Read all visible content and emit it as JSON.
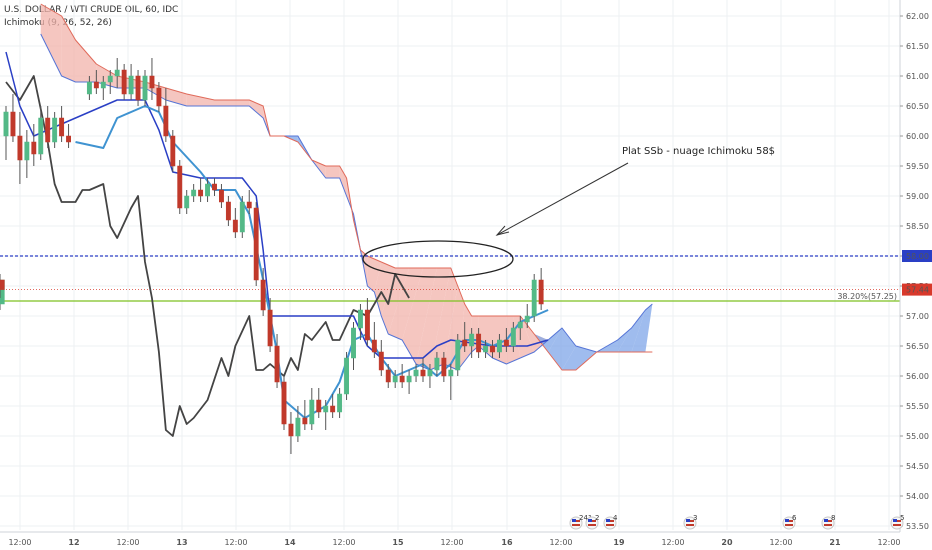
{
  "header": {
    "symbol_title": "U.S. DOLLAR / WTI CRUDE OIL, 60, IDC",
    "indicator": "Ichimoku (9, 26, 52, 26)"
  },
  "colors": {
    "bull_candle": "#53b987",
    "bear_candle": "#c0392b",
    "tenkan": "#3f93d1",
    "kijun": "#2a3fc5",
    "chikou": "#444444",
    "cloud_bearish": "#f2b3ab",
    "cloud_bullish": "#7fa6e8",
    "senkou_a": "#5574d6",
    "senkou_b": "#e06a5a",
    "level_58": "#2a3fc5",
    "fib_line": "#7dc121",
    "last_price": "#d8392b"
  },
  "chart_data": {
    "type": "candlestick",
    "title": "U.S. DOLLAR / WTI CRUDE OIL, 60, IDC",
    "ylim": [
      53.5,
      62.2
    ],
    "y_ticks": [
      "62.00",
      "61.50",
      "61.00",
      "60.50",
      "60.00",
      "59.50",
      "59.00",
      "58.50",
      "58.00",
      "57.50",
      "57.00",
      "56.50",
      "56.00",
      "55.50",
      "55.00",
      "54.50",
      "54.00",
      "53.50"
    ],
    "x_ticks": [
      "12:00",
      "12",
      "12:00",
      "13",
      "12:00",
      "14",
      "12:00",
      "15",
      "12:00",
      "16",
      "12:00",
      "19",
      "12:00",
      "20",
      "12:00",
      "21",
      "12:00"
    ],
    "annotation": "Plat SSb - nuage Ichimoku 58$",
    "horizontal_level": {
      "value": 58.0,
      "label": "58.00"
    },
    "fib_level": {
      "value": 57.25,
      "label": "38.20%(57.25)"
    },
    "last_price": {
      "value": 57.44,
      "label": "57.44"
    },
    "event_badges": [
      "241",
      "2",
      "4",
      "3",
      "6",
      "8",
      "5"
    ],
    "candles": [
      {
        "o": 60.0,
        "h": 60.5,
        "l": 59.6,
        "c": 60.4
      },
      {
        "o": 60.4,
        "h": 60.7,
        "l": 59.9,
        "c": 60.0
      },
      {
        "o": 60.0,
        "h": 60.4,
        "l": 59.2,
        "c": 59.6
      },
      {
        "o": 59.6,
        "h": 60.1,
        "l": 59.3,
        "c": 59.9
      },
      {
        "o": 59.9,
        "h": 60.2,
        "l": 59.5,
        "c": 59.7
      },
      {
        "o": 59.7,
        "h": 60.5,
        "l": 59.6,
        "c": 60.3
      },
      {
        "o": 60.3,
        "h": 60.5,
        "l": 59.8,
        "c": 59.9
      },
      {
        "o": 59.9,
        "h": 60.4,
        "l": 59.8,
        "c": 60.3
      },
      {
        "o": 60.3,
        "h": 60.5,
        "l": 59.9,
        "c": 60.0
      },
      {
        "o": 60.0,
        "h": 60.2,
        "l": 59.8,
        "c": 59.9
      },
      {
        "o": 60.7,
        "h": 61.0,
        "l": 60.6,
        "c": 60.9
      },
      {
        "o": 60.9,
        "h": 61.1,
        "l": 60.7,
        "c": 60.8
      },
      {
        "o": 60.8,
        "h": 61.0,
        "l": 60.6,
        "c": 60.9
      },
      {
        "o": 60.9,
        "h": 61.1,
        "l": 60.7,
        "c": 61.0
      },
      {
        "o": 61.0,
        "h": 61.3,
        "l": 60.8,
        "c": 61.1
      },
      {
        "o": 61.1,
        "h": 61.2,
        "l": 60.6,
        "c": 60.7
      },
      {
        "o": 60.7,
        "h": 61.2,
        "l": 60.6,
        "c": 61.0
      },
      {
        "o": 61.0,
        "h": 61.1,
        "l": 60.5,
        "c": 60.6
      },
      {
        "o": 60.6,
        "h": 61.1,
        "l": 60.5,
        "c": 61.0
      },
      {
        "o": 61.0,
        "h": 61.3,
        "l": 60.6,
        "c": 60.8
      },
      {
        "o": 60.8,
        "h": 60.9,
        "l": 60.4,
        "c": 60.5
      },
      {
        "o": 60.5,
        "h": 60.8,
        "l": 59.9,
        "c": 60.0
      },
      {
        "o": 60.0,
        "h": 60.1,
        "l": 59.4,
        "c": 59.5
      },
      {
        "o": 59.5,
        "h": 59.6,
        "l": 58.7,
        "c": 58.8
      },
      {
        "o": 58.8,
        "h": 59.1,
        "l": 58.7,
        "c": 59.0
      },
      {
        "o": 59.0,
        "h": 59.2,
        "l": 58.9,
        "c": 59.1
      },
      {
        "o": 59.1,
        "h": 59.3,
        "l": 58.9,
        "c": 59.0
      },
      {
        "o": 59.0,
        "h": 59.3,
        "l": 58.9,
        "c": 59.2
      },
      {
        "o": 59.2,
        "h": 59.3,
        "l": 59.0,
        "c": 59.1
      },
      {
        "o": 59.1,
        "h": 59.2,
        "l": 58.8,
        "c": 58.9
      },
      {
        "o": 58.9,
        "h": 59.0,
        "l": 58.5,
        "c": 58.6
      },
      {
        "o": 58.6,
        "h": 58.8,
        "l": 58.3,
        "c": 58.4
      },
      {
        "o": 58.4,
        "h": 59.0,
        "l": 58.3,
        "c": 58.9
      },
      {
        "o": 58.9,
        "h": 59.1,
        "l": 58.7,
        "c": 58.8
      },
      {
        "o": 58.8,
        "h": 58.9,
        "l": 57.5,
        "c": 57.6
      },
      {
        "o": 57.6,
        "h": 57.8,
        "l": 57.0,
        "c": 57.1
      },
      {
        "o": 57.1,
        "h": 57.3,
        "l": 56.4,
        "c": 56.5
      },
      {
        "o": 56.5,
        "h": 56.7,
        "l": 55.8,
        "c": 55.9
      },
      {
        "o": 55.9,
        "h": 56.0,
        "l": 55.1,
        "c": 55.2
      },
      {
        "o": 55.2,
        "h": 55.4,
        "l": 54.7,
        "c": 55.0
      },
      {
        "o": 55.0,
        "h": 55.5,
        "l": 54.9,
        "c": 55.3
      },
      {
        "o": 55.3,
        "h": 55.6,
        "l": 55.1,
        "c": 55.2
      },
      {
        "o": 55.2,
        "h": 55.8,
        "l": 55.1,
        "c": 55.6
      },
      {
        "o": 55.6,
        "h": 55.8,
        "l": 55.3,
        "c": 55.4
      },
      {
        "o": 55.4,
        "h": 55.6,
        "l": 55.1,
        "c": 55.5
      },
      {
        "o": 55.5,
        "h": 55.7,
        "l": 55.3,
        "c": 55.4
      },
      {
        "o": 55.4,
        "h": 55.8,
        "l": 55.3,
        "c": 55.7
      },
      {
        "o": 55.7,
        "h": 56.4,
        "l": 55.6,
        "c": 56.3
      },
      {
        "o": 56.3,
        "h": 56.9,
        "l": 56.1,
        "c": 56.8
      },
      {
        "o": 56.8,
        "h": 57.2,
        "l": 56.6,
        "c": 57.1
      },
      {
        "o": 57.1,
        "h": 57.3,
        "l": 56.5,
        "c": 56.6
      },
      {
        "o": 56.6,
        "h": 56.9,
        "l": 56.3,
        "c": 56.4
      },
      {
        "o": 56.4,
        "h": 56.6,
        "l": 56.0,
        "c": 56.1
      },
      {
        "o": 56.1,
        "h": 56.2,
        "l": 55.8,
        "c": 55.9
      },
      {
        "o": 55.9,
        "h": 56.1,
        "l": 55.8,
        "c": 56.0
      },
      {
        "o": 56.0,
        "h": 56.2,
        "l": 55.8,
        "c": 55.9
      },
      {
        "o": 55.9,
        "h": 56.1,
        "l": 55.7,
        "c": 56.0
      },
      {
        "o": 56.0,
        "h": 56.2,
        "l": 55.9,
        "c": 56.1
      },
      {
        "o": 56.1,
        "h": 56.3,
        "l": 55.9,
        "c": 56.0
      },
      {
        "o": 56.0,
        "h": 56.2,
        "l": 55.8,
        "c": 56.1
      },
      {
        "o": 56.1,
        "h": 56.4,
        "l": 56.0,
        "c": 56.3
      },
      {
        "o": 56.3,
        "h": 56.4,
        "l": 55.9,
        "c": 56.0
      },
      {
        "o": 56.0,
        "h": 56.2,
        "l": 55.6,
        "c": 56.1
      },
      {
        "o": 56.1,
        "h": 56.7,
        "l": 56.0,
        "c": 56.6
      },
      {
        "o": 56.6,
        "h": 56.9,
        "l": 56.4,
        "c": 56.5
      },
      {
        "o": 56.5,
        "h": 56.8,
        "l": 56.3,
        "c": 56.7
      },
      {
        "o": 56.7,
        "h": 56.8,
        "l": 56.3,
        "c": 56.4
      },
      {
        "o": 56.4,
        "h": 56.6,
        "l": 56.3,
        "c": 56.5
      },
      {
        "o": 56.5,
        "h": 56.6,
        "l": 56.3,
        "c": 56.4
      },
      {
        "o": 56.4,
        "h": 56.7,
        "l": 56.3,
        "c": 56.6
      },
      {
        "o": 56.6,
        "h": 56.8,
        "l": 56.4,
        "c": 56.5
      },
      {
        "o": 56.5,
        "h": 56.9,
        "l": 56.4,
        "c": 56.8
      },
      {
        "o": 56.8,
        "h": 57.0,
        "l": 56.6,
        "c": 56.9
      },
      {
        "o": 56.9,
        "h": 57.2,
        "l": 56.8,
        "c": 57.0
      },
      {
        "o": 57.0,
        "h": 57.7,
        "l": 56.9,
        "c": 57.6
      },
      {
        "o": 57.6,
        "h": 57.8,
        "l": 57.1,
        "c": 57.2
      },
      {
        "o": 57.2,
        "h": 57.7,
        "l": 57.1,
        "c": 57.6
      },
      {
        "o": 57.6,
        "h": 57.7,
        "l": 57.3,
        "c": 57.44
      }
    ],
    "candle_x_index": [
      0,
      1,
      2,
      3,
      4,
      5,
      6,
      7,
      8,
      9,
      12,
      13,
      14,
      15,
      16,
      17,
      18,
      19,
      20,
      21,
      22,
      23,
      24,
      25,
      26,
      27,
      28,
      29,
      30,
      31,
      32,
      33,
      34,
      35,
      36,
      37,
      38,
      39,
      40,
      41,
      42,
      43,
      44,
      45,
      46,
      47,
      48,
      49,
      50,
      51,
      52,
      53,
      54,
      55,
      56,
      57,
      58,
      59,
      60,
      61,
      62,
      63,
      64,
      65,
      66,
      67,
      68,
      69,
      70,
      71,
      72,
      73,
      74,
      75,
      76,
      77
    ],
    "tenkan_sen": [
      [
        10,
        59.9
      ],
      [
        14,
        59.8
      ],
      [
        16,
        60.3
      ],
      [
        18,
        60.4
      ],
      [
        20,
        60.5
      ],
      [
        22,
        60.4
      ],
      [
        24,
        59.9
      ],
      [
        28,
        59.4
      ],
      [
        30,
        59.1
      ],
      [
        33,
        59.1
      ],
      [
        35,
        58.7
      ],
      [
        37,
        57.6
      ],
      [
        39,
        56.4
      ],
      [
        40,
        55.6
      ],
      [
        43,
        55.3
      ],
      [
        46,
        55.5
      ],
      [
        48,
        55.9
      ],
      [
        50,
        56.6
      ],
      [
        52,
        56.7
      ],
      [
        54,
        56.3
      ],
      [
        56,
        56.0
      ],
      [
        58,
        56.1
      ],
      [
        60,
        56.2
      ],
      [
        62,
        56.0
      ],
      [
        64,
        56.2
      ],
      [
        66,
        56.6
      ],
      [
        68,
        56.6
      ],
      [
        70,
        56.5
      ],
      [
        72,
        56.6
      ],
      [
        74,
        56.9
      ],
      [
        76,
        57.0
      ],
      [
        78,
        57.1
      ]
    ],
    "kijun_sen": [
      [
        0,
        61.4
      ],
      [
        2,
        60.5
      ],
      [
        4,
        60.0
      ],
      [
        8,
        60.2
      ],
      [
        10,
        60.3
      ],
      [
        16,
        60.6
      ],
      [
        20,
        60.6
      ],
      [
        22,
        60.1
      ],
      [
        24,
        59.4
      ],
      [
        28,
        59.3
      ],
      [
        34,
        59.3
      ],
      [
        36,
        59.0
      ],
      [
        37,
        58.1
      ],
      [
        38,
        57.0
      ],
      [
        40,
        57.0
      ],
      [
        45,
        57.0
      ],
      [
        50,
        57.0
      ],
      [
        52,
        56.5
      ],
      [
        54,
        56.3
      ],
      [
        58,
        56.3
      ],
      [
        60,
        56.3
      ],
      [
        62,
        56.5
      ],
      [
        64,
        56.6
      ],
      [
        70,
        56.5
      ],
      [
        72,
        56.5
      ],
      [
        75,
        56.5
      ],
      [
        78,
        56.6
      ]
    ],
    "chikou_span": [
      [
        0,
        60.9
      ],
      [
        2,
        60.6
      ],
      [
        4,
        61.0
      ],
      [
        6,
        59.9
      ],
      [
        7,
        59.2
      ],
      [
        8,
        58.9
      ],
      [
        10,
        58.9
      ],
      [
        11,
        59.1
      ],
      [
        12,
        59.1
      ],
      [
        14,
        59.2
      ],
      [
        15,
        58.5
      ],
      [
        16,
        58.3
      ],
      [
        18,
        58.8
      ],
      [
        19,
        59.0
      ],
      [
        20,
        57.9
      ],
      [
        21,
        57.3
      ],
      [
        22,
        56.4
      ],
      [
        23,
        55.1
      ],
      [
        24,
        55.0
      ],
      [
        25,
        55.5
      ],
      [
        26,
        55.2
      ],
      [
        27,
        55.3
      ],
      [
        29,
        55.6
      ],
      [
        31,
        56.3
      ],
      [
        32,
        56.0
      ],
      [
        33,
        56.5
      ],
      [
        35,
        57.0
      ],
      [
        36,
        56.1
      ],
      [
        37,
        56.1
      ],
      [
        38,
        56.2
      ],
      [
        40,
        56.0
      ],
      [
        41,
        56.3
      ],
      [
        42,
        56.1
      ],
      [
        43,
        56.7
      ],
      [
        44,
        56.6
      ],
      [
        46,
        56.9
      ],
      [
        47,
        56.6
      ],
      [
        48,
        56.6
      ],
      [
        50,
        57.1
      ],
      [
        52,
        57.0
      ],
      [
        54,
        57.4
      ],
      [
        55,
        57.2
      ],
      [
        56,
        57.7
      ],
      [
        57,
        57.5
      ],
      [
        58,
        57.3
      ]
    ],
    "senkou_span_a": [
      [
        5,
        61.7
      ],
      [
        8,
        61.0
      ],
      [
        10,
        60.9
      ],
      [
        13,
        60.9
      ],
      [
        16,
        60.8
      ],
      [
        20,
        60.8
      ],
      [
        23,
        60.6
      ],
      [
        26,
        60.5
      ],
      [
        30,
        60.5
      ],
      [
        35,
        60.5
      ],
      [
        37,
        60.3
      ],
      [
        38,
        60.0
      ],
      [
        40,
        60.0
      ],
      [
        42,
        60.0
      ],
      [
        44,
        59.6
      ],
      [
        46,
        59.3
      ],
      [
        48,
        59.3
      ],
      [
        49,
        59.0
      ],
      [
        50,
        58.7
      ],
      [
        51,
        58.1
      ],
      [
        52,
        57.5
      ],
      [
        53,
        57.4
      ],
      [
        54,
        57.0
      ],
      [
        55,
        56.7
      ],
      [
        57,
        56.6
      ],
      [
        59,
        56.2
      ],
      [
        61,
        56.1
      ],
      [
        63,
        56.2
      ],
      [
        65,
        56.1
      ],
      [
        67,
        56.4
      ],
      [
        68,
        56.5
      ],
      [
        70,
        56.3
      ],
      [
        72,
        56.2
      ],
      [
        74,
        56.3
      ],
      [
        76,
        56.4
      ],
      [
        78,
        56.6
      ],
      [
        80,
        56.8
      ],
      [
        82,
        56.5
      ],
      [
        85,
        56.4
      ],
      [
        88,
        56.6
      ],
      [
        90,
        56.8
      ],
      [
        92,
        57.1
      ],
      [
        93,
        57.2
      ]
    ],
    "senkou_span_b": [
      [
        5,
        62.2
      ],
      [
        8,
        62.0
      ],
      [
        10,
        61.6
      ],
      [
        13,
        61.2
      ],
      [
        16,
        61.0
      ],
      [
        20,
        60.9
      ],
      [
        23,
        60.8
      ],
      [
        26,
        60.7
      ],
      [
        30,
        60.6
      ],
      [
        35,
        60.6
      ],
      [
        37,
        60.5
      ],
      [
        38,
        60.0
      ],
      [
        40,
        60.0
      ],
      [
        42,
        59.9
      ],
      [
        44,
        59.6
      ],
      [
        46,
        59.5
      ],
      [
        48,
        59.5
      ],
      [
        49,
        59.3
      ],
      [
        50,
        58.6
      ],
      [
        51,
        58.1
      ],
      [
        52,
        58.0
      ],
      [
        54,
        57.9
      ],
      [
        56,
        57.8
      ],
      [
        58,
        57.8
      ],
      [
        60,
        57.8
      ],
      [
        62,
        57.8
      ],
      [
        64,
        57.8
      ],
      [
        65,
        57.5
      ],
      [
        66,
        57.2
      ],
      [
        67,
        57.0
      ],
      [
        68,
        57.0
      ],
      [
        70,
        57.0
      ],
      [
        72,
        57.0
      ],
      [
        73,
        57.0
      ],
      [
        74,
        57.0
      ],
      [
        76,
        56.7
      ],
      [
        78,
        56.4
      ],
      [
        80,
        56.1
      ],
      [
        82,
        56.1
      ],
      [
        85,
        56.4
      ],
      [
        88,
        56.4
      ],
      [
        90,
        56.4
      ],
      [
        92,
        56.4
      ],
      [
        93,
        56.4
      ]
    ]
  }
}
